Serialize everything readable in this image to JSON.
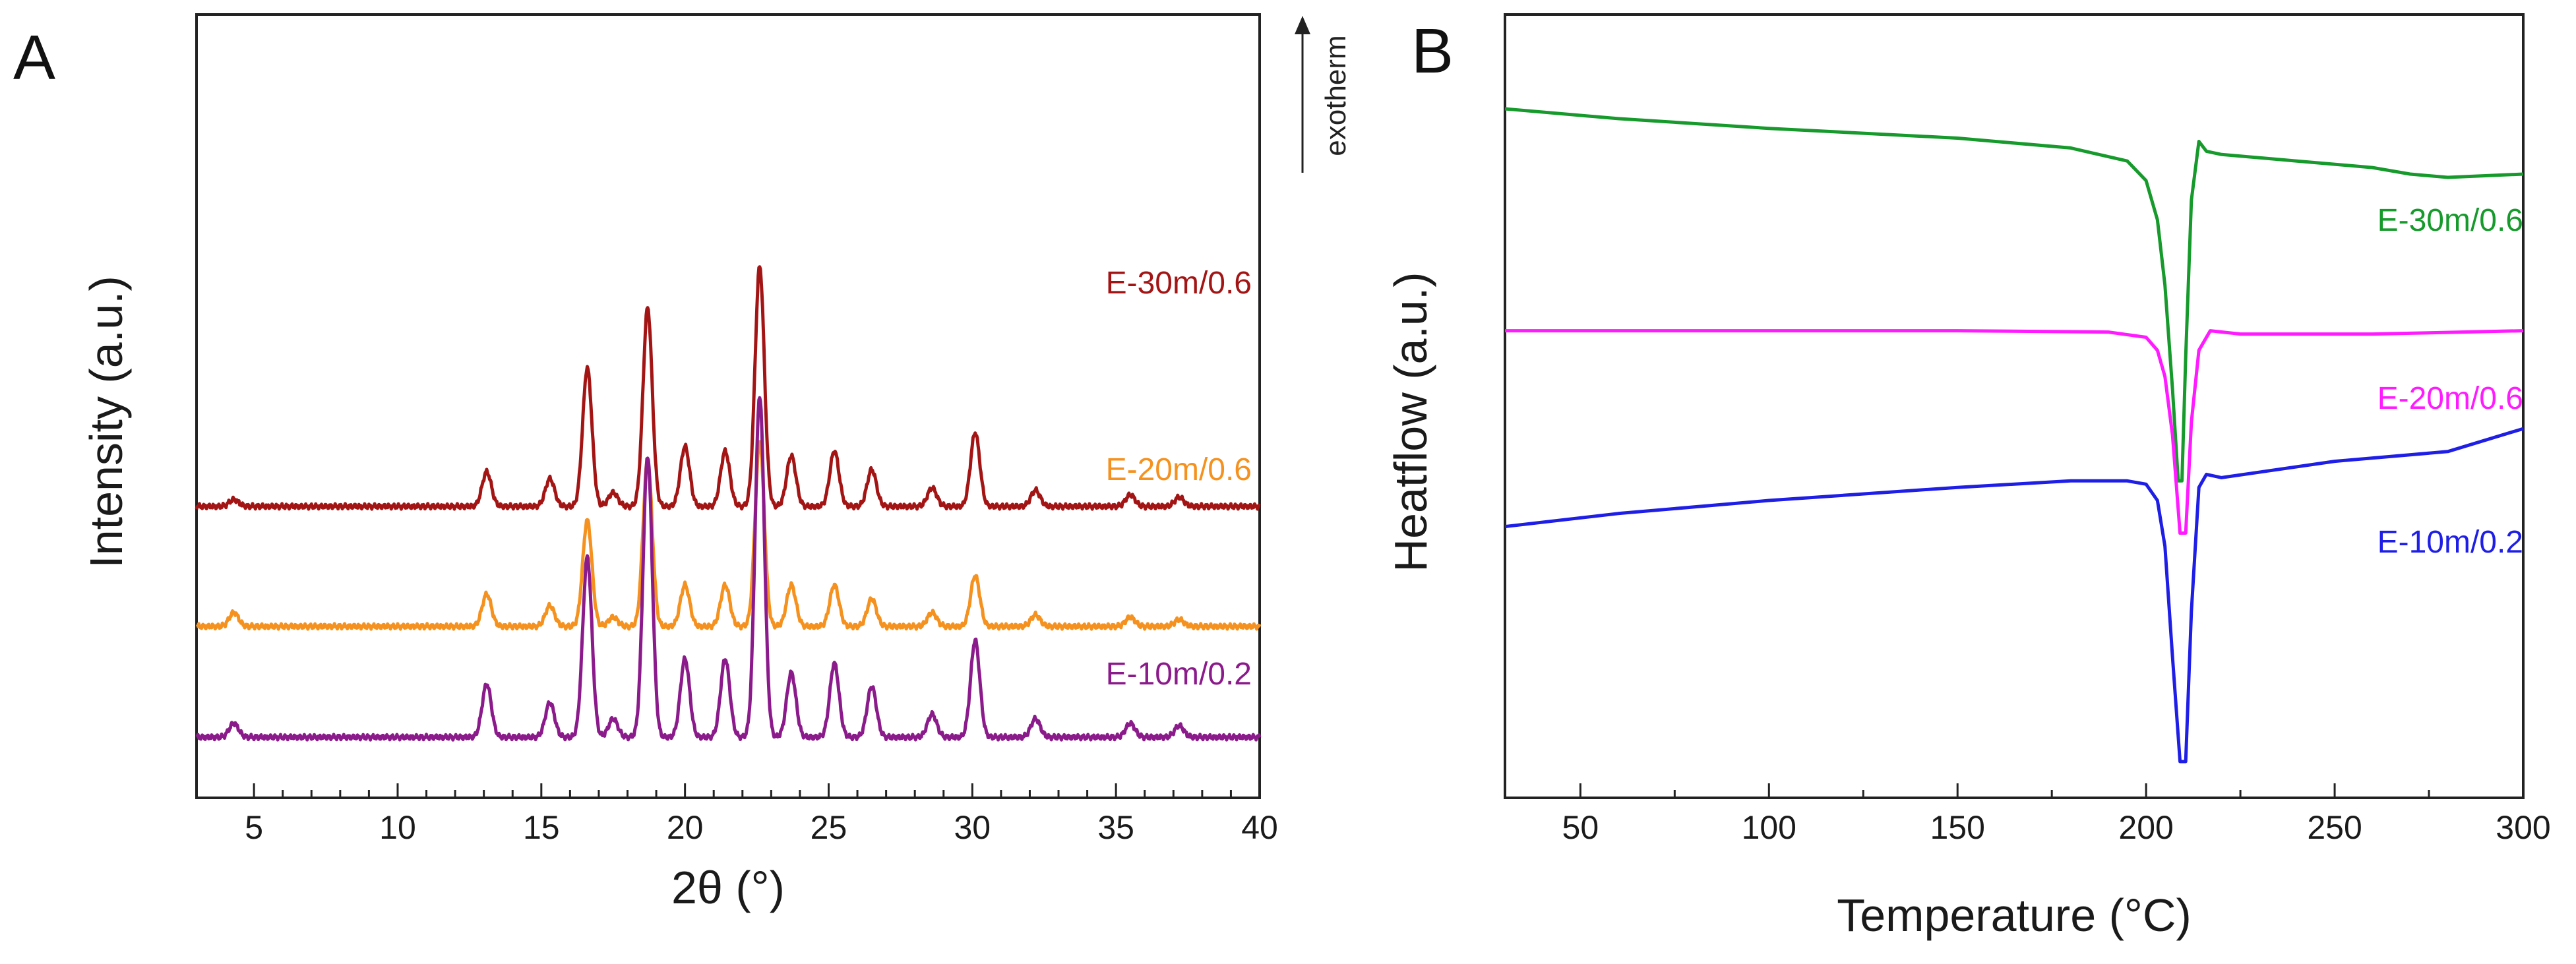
{
  "chart_data": [
    {
      "type": "line",
      "panel_label": "A",
      "title": "",
      "xlabel": "2θ (°)",
      "ylabel": "Intensity (a.u.)",
      "xlim": [
        3,
        40
      ],
      "xticks": [
        "5",
        "10",
        "15",
        "20",
        "25",
        "30",
        "35",
        "40"
      ],
      "y_tick_labels": false,
      "grid": false,
      "legend": "series labels placed directly above each trace on the right",
      "peaks_2theta": [
        4.3,
        13.1,
        15.3,
        16.6,
        17.5,
        18.7,
        20.0,
        21.4,
        22.6,
        23.7,
        25.2,
        26.5,
        28.6,
        30.1,
        32.2,
        35.5,
        37.2
      ],
      "series": [
        {
          "name": "E-30m/0.6",
          "color": "#a31515",
          "baseline": 5.0,
          "peak_intensities": [
            0.15,
            0.75,
            0.6,
            3.0,
            0.3,
            4.3,
            1.3,
            1.2,
            5.2,
            1.1,
            1.2,
            0.8,
            0.4,
            1.6,
            0.35,
            0.25,
            0.2
          ]
        },
        {
          "name": "E-20m/0.6",
          "color": "#f5911e",
          "baseline": 2.4,
          "peak_intensities": [
            0.3,
            0.7,
            0.45,
            2.3,
            0.2,
            3.6,
            0.9,
            0.9,
            4.0,
            0.9,
            0.9,
            0.6,
            0.3,
            1.1,
            0.25,
            0.2,
            0.15
          ]
        },
        {
          "name": "E-10m/0.2",
          "color": "#8b1a8b",
          "baseline": 0.0,
          "peak_intensities": [
            0.3,
            1.15,
            0.75,
            3.9,
            0.4,
            6.1,
            1.7,
            1.7,
            7.4,
            1.4,
            1.6,
            1.1,
            0.5,
            2.1,
            0.4,
            0.3,
            0.25
          ]
        }
      ]
    },
    {
      "type": "line",
      "panel_label": "B",
      "title": "",
      "xlabel": "Temperature (°C)",
      "ylabel": "Heatflow (a.u.)",
      "xlim": [
        30,
        300
      ],
      "xticks": [
        "50",
        "100",
        "150",
        "200",
        "250",
        "300"
      ],
      "y_tick_labels": false,
      "grid": false,
      "annotation": "exotherm",
      "annotation_arrow": "up",
      "legend": "series labels placed to the right of each trace",
      "series": [
        {
          "name": "E-30m/0.6",
          "color": "#179a2c",
          "x": [
            30,
            60,
            100,
            150,
            180,
            195,
            200,
            203,
            205,
            207,
            208.5,
            209.5,
            210.5,
            212,
            214,
            216,
            220,
            240,
            260,
            270,
            280,
            300
          ],
          "y": [
            10.0,
            9.85,
            9.7,
            9.55,
            9.4,
            9.2,
            8.9,
            8.3,
            7.3,
            5.7,
            4.3,
            4.3,
            6.2,
            8.6,
            9.5,
            9.35,
            9.3,
            9.2,
            9.1,
            9.0,
            8.95,
            9.0
          ]
        },
        {
          "name": "E-20m/0.6",
          "color": "#ff1aff",
          "x": [
            30,
            100,
            150,
            190,
            200,
            203,
            205,
            207,
            209,
            210.5,
            212,
            214,
            217,
            225,
            260,
            300
          ],
          "y": [
            6.6,
            6.6,
            6.6,
            6.58,
            6.5,
            6.3,
            5.9,
            5.0,
            3.5,
            3.5,
            5.2,
            6.3,
            6.6,
            6.55,
            6.55,
            6.6
          ]
        },
        {
          "name": "E-10m/0.2",
          "color": "#1e1ee6",
          "x": [
            30,
            60,
            100,
            150,
            180,
            195,
            200,
            203,
            205,
            207,
            209,
            210.5,
            212,
            214,
            216,
            220,
            250,
            280,
            300
          ],
          "y": [
            3.6,
            3.8,
            4.0,
            4.2,
            4.3,
            4.3,
            4.25,
            4.0,
            3.3,
            1.6,
            0.0,
            0.0,
            2.3,
            4.2,
            4.4,
            4.35,
            4.6,
            4.75,
            5.1
          ]
        }
      ]
    }
  ]
}
